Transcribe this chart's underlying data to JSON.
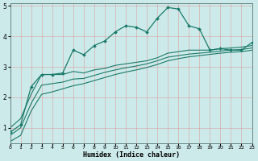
{
  "xlabel": "Humidex (Indice chaleur)",
  "x_values": [
    0,
    1,
    2,
    3,
    4,
    5,
    6,
    7,
    8,
    9,
    10,
    11,
    12,
    13,
    14,
    15,
    16,
    17,
    18,
    19,
    20,
    21,
    22,
    23
  ],
  "line1_y": [
    0.85,
    1.1,
    2.35,
    2.75,
    2.75,
    2.8,
    3.55,
    3.4,
    3.7,
    3.85,
    4.15,
    4.35,
    4.3,
    4.15,
    4.6,
    4.95,
    4.9,
    4.35,
    4.25,
    3.55,
    3.6,
    3.55,
    3.55,
    3.8
  ],
  "line2_y": [
    1.0,
    1.3,
    2.1,
    2.75,
    2.75,
    2.75,
    2.85,
    2.8,
    2.9,
    2.95,
    3.05,
    3.1,
    3.15,
    3.2,
    3.3,
    3.45,
    3.5,
    3.55,
    3.55,
    3.55,
    3.6,
    3.62,
    3.65,
    3.7
  ],
  "line3_y": [
    0.75,
    1.0,
    1.8,
    2.4,
    2.45,
    2.5,
    2.6,
    2.62,
    2.72,
    2.82,
    2.9,
    2.97,
    3.03,
    3.1,
    3.2,
    3.32,
    3.37,
    3.42,
    3.45,
    3.48,
    3.52,
    3.55,
    3.57,
    3.62
  ],
  "line4_y": [
    0.55,
    0.75,
    1.55,
    2.1,
    2.18,
    2.28,
    2.38,
    2.45,
    2.55,
    2.65,
    2.75,
    2.83,
    2.9,
    2.98,
    3.08,
    3.2,
    3.27,
    3.33,
    3.37,
    3.41,
    3.45,
    3.48,
    3.5,
    3.55
  ],
  "line_color": "#1a7a6a",
  "bg_color": "#cdeaea",
  "grid_color_major": "#b0c8c8",
  "grid_color_minor": "#d0e4e4",
  "ylim": [
    0.5,
    5.1
  ],
  "xlim": [
    0,
    23
  ],
  "yticks": [
    1,
    2,
    3,
    4,
    5
  ],
  "xtick_labels": [
    "0",
    "1",
    "2",
    "3",
    "4",
    "5",
    "6",
    "7",
    "8",
    "9",
    "10",
    "11",
    "12",
    "13",
    "14",
    "15",
    "16",
    "17",
    "18",
    "19",
    "20",
    "21",
    "22",
    "23"
  ]
}
